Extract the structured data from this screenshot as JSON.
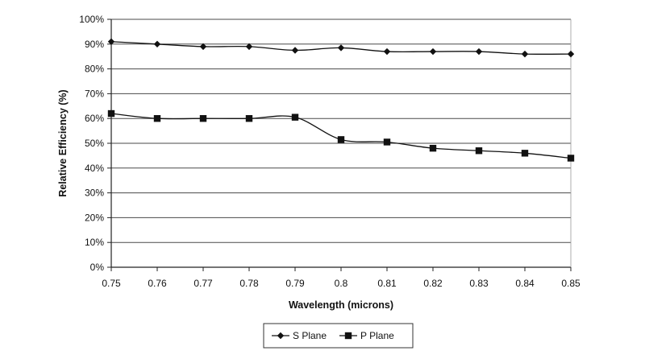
{
  "chart_data": {
    "type": "line",
    "x": [
      0.75,
      0.76,
      0.77,
      0.78,
      0.79,
      0.8,
      0.81,
      0.82,
      0.83,
      0.84,
      0.85
    ],
    "x_tick_labels": [
      "0.75",
      "0.76",
      "0.77",
      "0.78",
      "0.79",
      "0.8",
      "0.81",
      "0.82",
      "0.83",
      "0.84",
      "0.85"
    ],
    "xlabel": "Wavelength (microns)",
    "ylabel": "Relative Efficiency (%)",
    "ylim": [
      0,
      100
    ],
    "y_tick_labels": [
      "0%",
      "10%",
      "20%",
      "30%",
      "40%",
      "50%",
      "60%",
      "70%",
      "80%",
      "90%",
      "100%"
    ],
    "grid": "horizontal",
    "legend_position": "bottom",
    "series": [
      {
        "name": "S Plane",
        "marker": "diamond",
        "color": "#111111",
        "values": [
          91,
          90,
          89,
          89,
          87.5,
          88.5,
          87,
          87,
          87,
          86,
          86
        ]
      },
      {
        "name": "P Plane",
        "marker": "square",
        "color": "#111111",
        "values": [
          62,
          60,
          60,
          60,
          60.5,
          51.5,
          50.5,
          48,
          47,
          46,
          44
        ]
      }
    ]
  }
}
